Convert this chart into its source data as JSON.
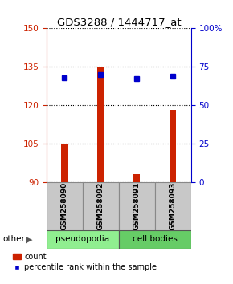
{
  "title": "GDS3288 / 1444717_at",
  "samples": [
    "GSM258090",
    "GSM258092",
    "GSM258091",
    "GSM258093"
  ],
  "count_values": [
    105,
    135,
    93,
    118
  ],
  "percentile_values": [
    68,
    70,
    67,
    69
  ],
  "ylim_left": [
    90,
    150
  ],
  "ylim_right": [
    0,
    100
  ],
  "yticks_left": [
    90,
    105,
    120,
    135,
    150
  ],
  "yticks_right": [
    0,
    25,
    50,
    75,
    100
  ],
  "ytick_right_labels": [
    "0",
    "25",
    "50",
    "75",
    "100%"
  ],
  "bar_color": "#cc2200",
  "dot_color": "#0000cc",
  "bar_bottom": 90,
  "legend_count_label": "count",
  "legend_percentile_label": "percentile rank within the sample",
  "other_label": "other",
  "axis_color_left": "#cc2200",
  "axis_color_right": "#0000cc",
  "groups_info": [
    {
      "label": "pseudopodia",
      "start": 0,
      "end": 1,
      "color": "#90ee90"
    },
    {
      "label": "cell bodies",
      "start": 2,
      "end": 3,
      "color": "#66cc66"
    }
  ]
}
